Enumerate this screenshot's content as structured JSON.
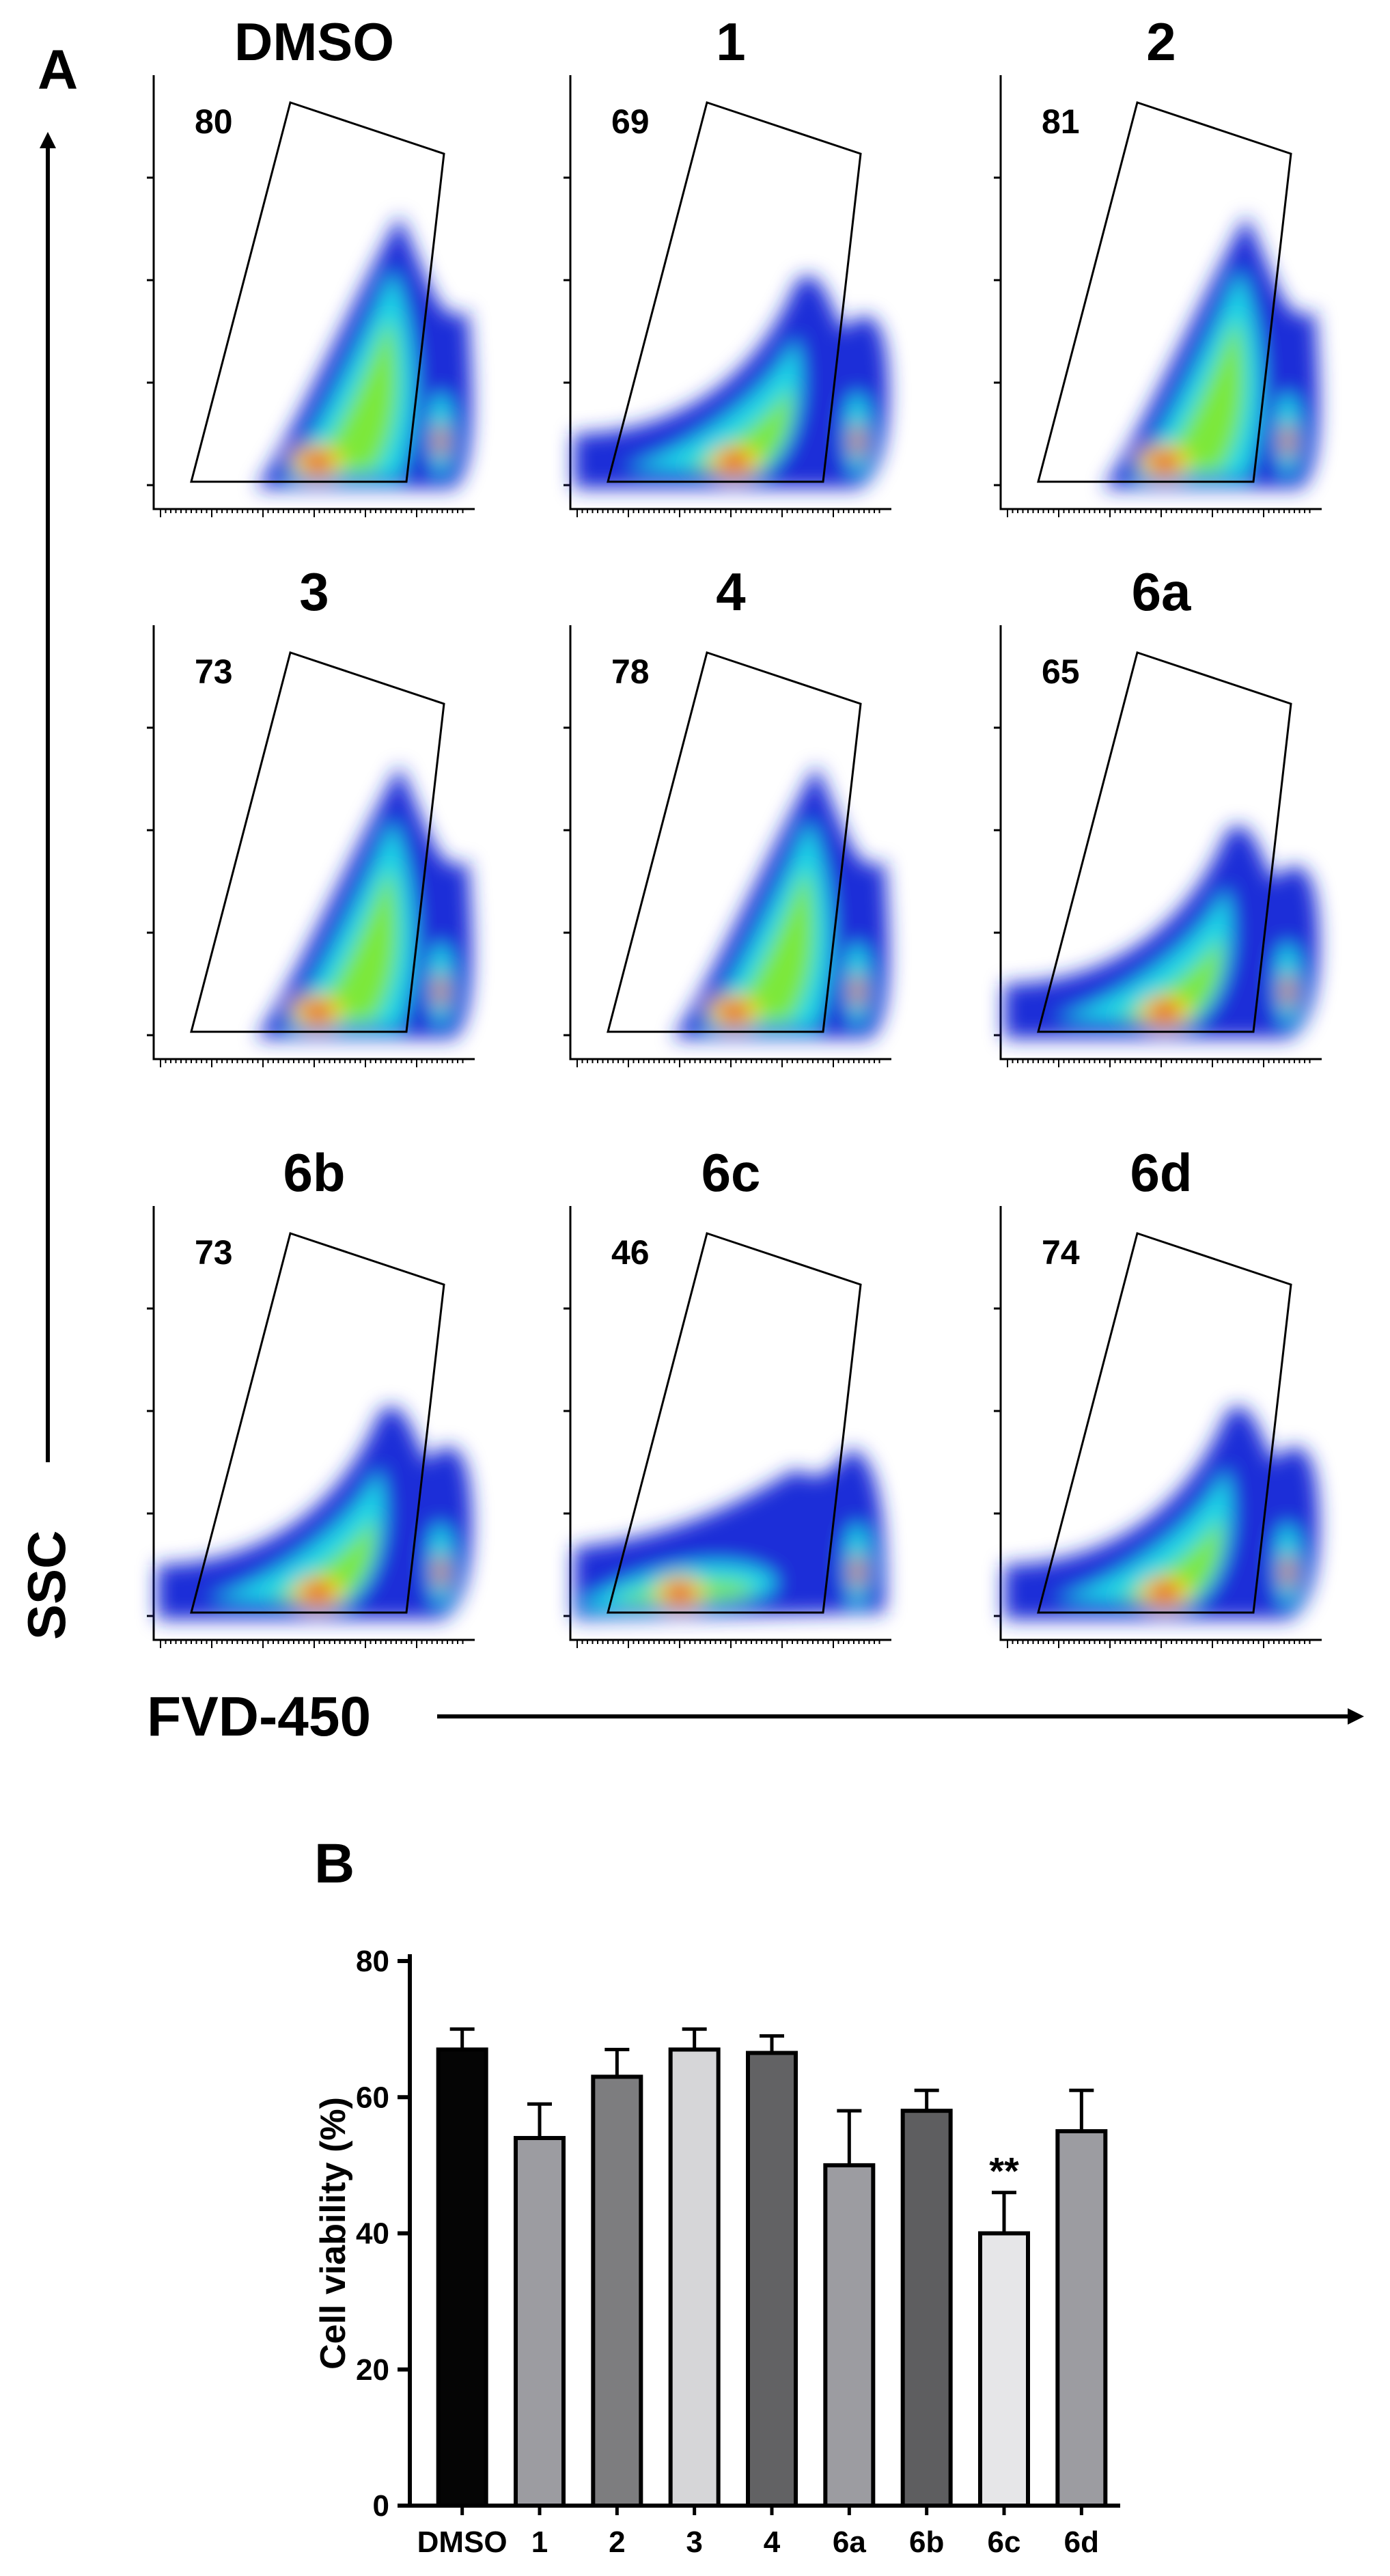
{
  "figure": {
    "panel_a_label": "A",
    "panel_b_label": "B",
    "y_axis_label": "SSC",
    "x_axis_label": "FVD-450"
  },
  "flow_plots": [
    {
      "name": "DMSO",
      "gate_value": "80",
      "profile": "normal"
    },
    {
      "name": "1",
      "gate_value": "69",
      "profile": "broad"
    },
    {
      "name": "2",
      "gate_value": "81",
      "profile": "normal"
    },
    {
      "name": "3",
      "gate_value": "73",
      "profile": "normal"
    },
    {
      "name": "4",
      "gate_value": "78",
      "profile": "normal"
    },
    {
      "name": "6a",
      "gate_value": "65",
      "profile": "broad"
    },
    {
      "name": "6b",
      "gate_value": "73",
      "profile": "broad"
    },
    {
      "name": "6c",
      "gate_value": "46",
      "profile": "flat"
    },
    {
      "name": "6d",
      "gate_value": "74",
      "profile": "broad"
    }
  ],
  "colors": {
    "flow_outer": "#1a2fd8",
    "flow_mid": "#1fd6e6",
    "flow_inner": "#7be83a",
    "flow_core": "#f2d61a",
    "flow_peak": "#e8161a"
  },
  "chart_data": {
    "type": "bar",
    "title": "",
    "xlabel": "",
    "ylabel": "Cell viability (%)",
    "ylim": [
      0,
      80
    ],
    "yticks": [
      "0",
      "20",
      "40",
      "60",
      "80"
    ],
    "categories": [
      "DMSO",
      "1",
      "2",
      "3",
      "4",
      "6a",
      "6b",
      "6c",
      "6d"
    ],
    "values": [
      67,
      54,
      63,
      67,
      66.5,
      50,
      58,
      40,
      55
    ],
    "errors": [
      3,
      5,
      4,
      3,
      2.5,
      8,
      3,
      6,
      6
    ],
    "bar_colors": [
      "#050505",
      "#9c9ca1",
      "#7d7d7f",
      "#d6d6d8",
      "#626264",
      "#9c9ca1",
      "#5e5e60",
      "#e6e6e8",
      "#9c9ca1"
    ],
    "annotations": [
      {
        "category": "6c",
        "text": "**"
      }
    ]
  }
}
